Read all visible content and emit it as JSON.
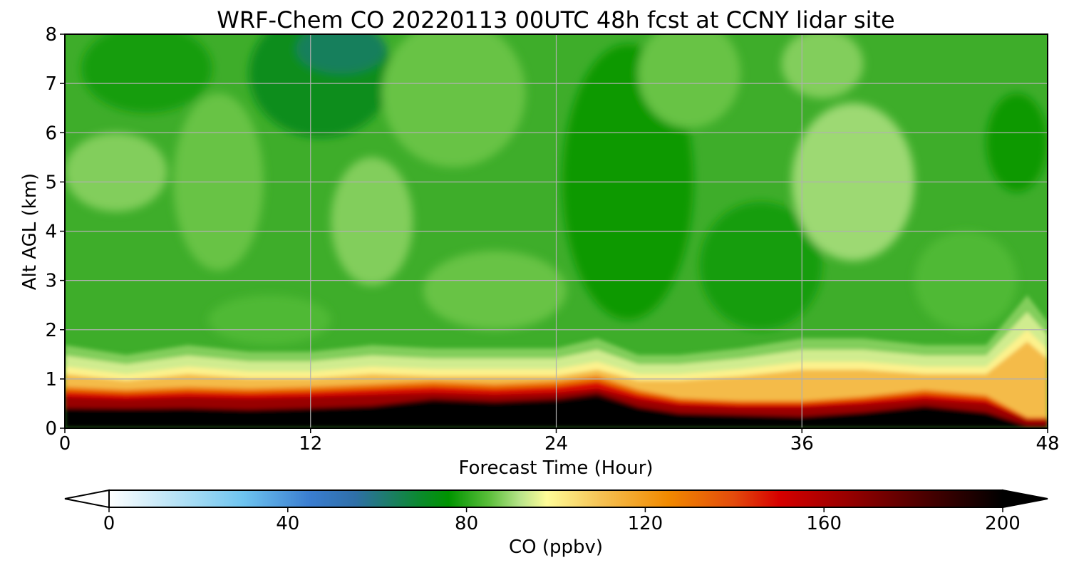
{
  "chart_data": {
    "type": "heatmap",
    "title": "WRF-Chem CO  20220113 00UTC 48h fcst at CCNY lidar site",
    "xlabel": "Forecast Time (Hour)",
    "ylabel": "Alt AGL (km)",
    "xlim": [
      0,
      48
    ],
    "ylim": [
      0,
      8
    ],
    "x_ticks": [
      "0",
      "12",
      "24",
      "36",
      "48"
    ],
    "y_ticks": [
      "0",
      "1",
      "2",
      "3",
      "4",
      "5",
      "6",
      "7",
      "8"
    ],
    "grid": true,
    "z_field": {
      "description": "Approximate CO mixing ratio read from the filled contours, sampled on a coarse grid",
      "x_hours": [
        0,
        3,
        6,
        9,
        12,
        15,
        18,
        21,
        24,
        26,
        28,
        30,
        33,
        36,
        39,
        42,
        45,
        47,
        48
      ],
      "surface_layer_top_km": [
        0.38,
        0.37,
        0.38,
        0.35,
        0.38,
        0.42,
        0.55,
        0.5,
        0.55,
        0.65,
        0.4,
        0.28,
        0.25,
        0.22,
        0.3,
        0.42,
        0.3,
        0.05,
        0.05
      ],
      "red_layer_top_km": [
        0.75,
        0.7,
        0.75,
        0.72,
        0.75,
        0.8,
        0.85,
        0.8,
        0.85,
        0.95,
        0.7,
        0.55,
        0.5,
        0.5,
        0.58,
        0.7,
        0.6,
        0.2,
        0.2
      ],
      "pbl_top_km": [
        1.25,
        1.1,
        1.25,
        1.15,
        1.15,
        1.25,
        1.2,
        1.2,
        1.2,
        1.35,
        1.1,
        1.1,
        1.2,
        1.35,
        1.35,
        1.25,
        1.25,
        2.0,
        1.6
      ],
      "free_troposphere_ppbv": 82
    },
    "colorbar": {
      "label": "CO  (ppbv)",
      "min": 0,
      "max": 200,
      "ticks": [
        "0",
        "40",
        "80",
        "120",
        "160",
        "200"
      ],
      "extend": "both",
      "orientation": "horizontal",
      "placement": "bottom",
      "stops": [
        {
          "value": 0,
          "color": "#ffffff"
        },
        {
          "value": 20,
          "color": "#9fd9f3"
        },
        {
          "value": 30,
          "color": "#6ec4f0"
        },
        {
          "value": 45,
          "color": "#3a7dd0"
        },
        {
          "value": 55,
          "color": "#2f6fa8"
        },
        {
          "value": 70,
          "color": "#0a8a2a"
        },
        {
          "value": 76,
          "color": "#009400"
        },
        {
          "value": 85,
          "color": "#5abe3a"
        },
        {
          "value": 92,
          "color": "#b8e48a"
        },
        {
          "value": 98,
          "color": "#fffc98"
        },
        {
          "value": 110,
          "color": "#f5c254"
        },
        {
          "value": 125,
          "color": "#f18a00"
        },
        {
          "value": 140,
          "color": "#e34a0c"
        },
        {
          "value": 150,
          "color": "#d60000"
        },
        {
          "value": 165,
          "color": "#990000"
        },
        {
          "value": 185,
          "color": "#400000"
        },
        {
          "value": 200,
          "color": "#000000"
        }
      ]
    }
  }
}
